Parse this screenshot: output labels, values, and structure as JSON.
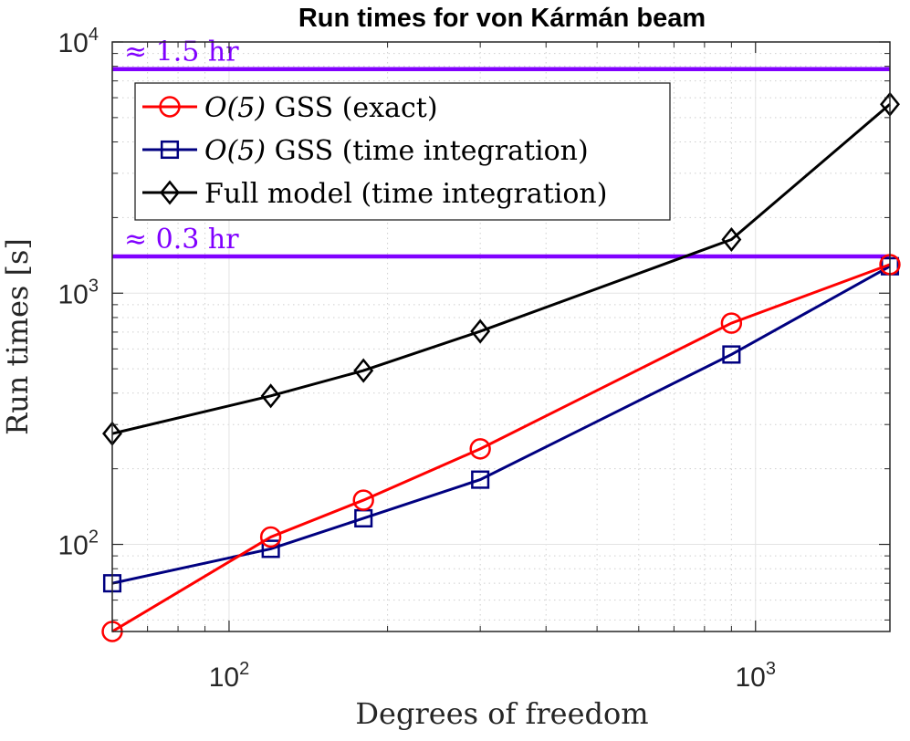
{
  "chart_data": {
    "type": "line",
    "title": "Run times for von Kármán beam",
    "xlabel": "Degrees of freedom",
    "ylabel": "Run times [s]",
    "xscale": "log",
    "yscale": "log",
    "xlim": [
      60,
      1800
    ],
    "ylim": [
      45,
      10000
    ],
    "grid": true,
    "x_ticks": [
      {
        "value": 100,
        "base": "10",
        "exp": "2"
      },
      {
        "value": 1000,
        "base": "10",
        "exp": "3"
      }
    ],
    "y_ticks": [
      {
        "value": 100,
        "base": "10",
        "exp": "2"
      },
      {
        "value": 1000,
        "base": "10",
        "exp": "3"
      },
      {
        "value": 10000,
        "base": "10",
        "exp": "4"
      }
    ],
    "legend_position": "top-left",
    "series": [
      {
        "name": "O(5) GSS (exact)",
        "name_math": "O(5)",
        "name_rest": " GSS (exact)",
        "color": "#ff0000",
        "marker": "circle",
        "x": [
          60,
          120,
          180,
          300,
          900,
          1800
        ],
        "y": [
          45,
          107,
          150,
          240,
          760,
          1300
        ]
      },
      {
        "name": "O(5) GSS (time integration)",
        "name_math": "O(5)",
        "name_rest": " GSS (time integration)",
        "color": "#000080",
        "marker": "square",
        "x": [
          60,
          120,
          180,
          300,
          900,
          1800
        ],
        "y": [
          70,
          96,
          127,
          181,
          570,
          1280
        ]
      },
      {
        "name": "Full model (time integration)",
        "name_math": "",
        "name_rest": "Full model (time integration)",
        "color": "#000000",
        "marker": "diamond",
        "x": [
          60,
          120,
          180,
          300,
          900,
          1800
        ],
        "y": [
          276,
          390,
          492,
          705,
          1635,
          5650
        ]
      }
    ],
    "reference_lines": [
      {
        "label": "≈ 1.5 hr",
        "value": 7800,
        "color": "#8000ff"
      },
      {
        "label": "≈ 0.3 hr",
        "value": 1400,
        "color": "#8000ff"
      }
    ]
  }
}
